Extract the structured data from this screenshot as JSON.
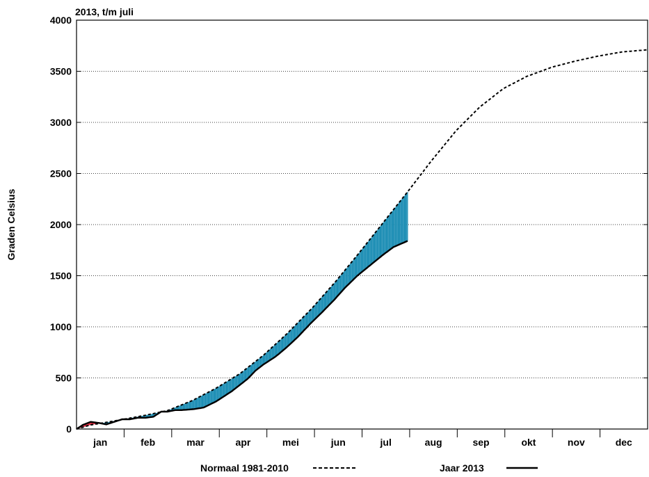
{
  "chart_data": {
    "type": "line",
    "title": "2013, t/m juli",
    "ylabel": "Graden Celsius",
    "xlabel": "",
    "ylim": [
      0,
      4000
    ],
    "yticks": [
      0,
      500,
      1000,
      1500,
      2000,
      2500,
      3000,
      3500,
      4000
    ],
    "x_unit": "day of year",
    "xlim": [
      1,
      365
    ],
    "categories": [
      "jan",
      "feb",
      "mar",
      "apr",
      "mei",
      "jun",
      "jul",
      "aug",
      "sep",
      "okt",
      "nov",
      "dec"
    ],
    "grid": "horizontal dotted",
    "legend": "bottom",
    "series": [
      {
        "name": "Normaal 1981-2010",
        "style": "dashed",
        "x": [
          1,
          10,
          20,
          31,
          45,
          59,
          75,
          90,
          105,
          120,
          135,
          151,
          166,
          181,
          196,
          212,
          227,
          243,
          258,
          273,
          288,
          304,
          319,
          334,
          349,
          365
        ],
        "y": [
          0,
          40,
          65,
          95,
          135,
          180,
          280,
          400,
          540,
          720,
          930,
          1180,
          1440,
          1720,
          2010,
          2320,
          2620,
          2920,
          3150,
          3330,
          3450,
          3540,
          3600,
          3650,
          3690,
          3710
        ]
      },
      {
        "name": "Jaar 2013",
        "style": "solid",
        "x": [
          1,
          5,
          10,
          15,
          20,
          25,
          30,
          35,
          40,
          45,
          50,
          55,
          59,
          64,
          68,
          72,
          76,
          82,
          90,
          96,
          100,
          105,
          110,
          115,
          120,
          128,
          135,
          142,
          150,
          158,
          165,
          172,
          180,
          188,
          196,
          203,
          212
        ],
        "y": [
          0,
          40,
          70,
          60,
          45,
          70,
          95,
          95,
          110,
          110,
          120,
          170,
          170,
          185,
          185,
          190,
          195,
          210,
          270,
          330,
          370,
          430,
          490,
          570,
          630,
          710,
          800,
          900,
          1030,
          1150,
          1260,
          1380,
          1500,
          1600,
          1700,
          1780,
          1840
        ]
      }
    ],
    "fills": {
      "below_normal": "#1f8fb5",
      "above_normal": "#d6253a"
    }
  },
  "legend": {
    "normal_label": "Normaal 1981-2010",
    "year_label": "Jaar 2013"
  },
  "colors": {
    "below_normal_fill": "#1f8fb5",
    "above_normal_fill": "#d6253a",
    "line": "#000000",
    "grid": "#000000"
  }
}
